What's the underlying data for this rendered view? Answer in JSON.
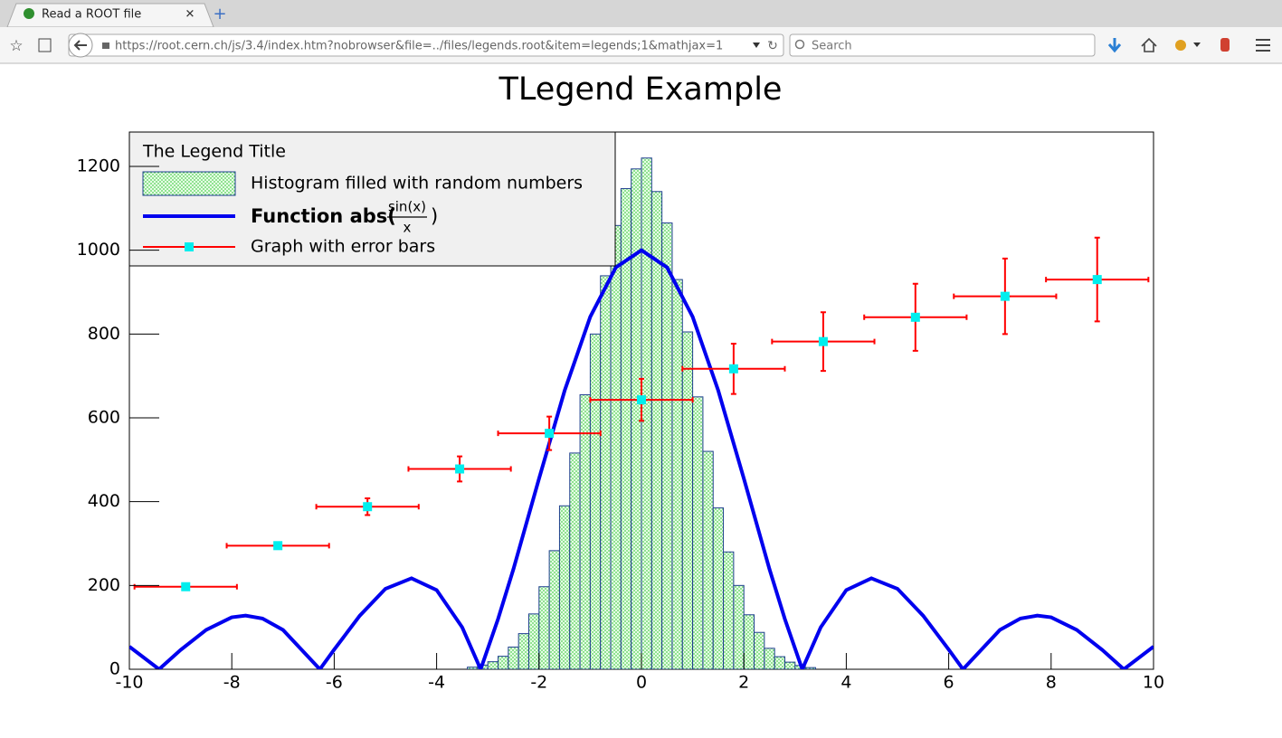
{
  "browser": {
    "tab_title": "Read a ROOT file",
    "url": "https://root.cern.ch/js/3.4/index.htm?nobrowser&file=../files/legends.root&item=legends;1&mathjax=1",
    "search_placeholder": "Search"
  },
  "chart_data": {
    "type": "combo",
    "title": "TLegend Example",
    "legend_title": "The Legend Title",
    "xlim": [
      -10,
      10
    ],
    "xticks": [
      -10,
      -8,
      -6,
      -4,
      -2,
      0,
      2,
      4,
      6,
      8,
      10
    ],
    "ylim": [
      0,
      1282
    ],
    "yticks": [
      0,
      200,
      400,
      600,
      800,
      1000,
      1200
    ],
    "series": [
      {
        "name": "Histogram filled with random numbers",
        "type": "histogram",
        "color": "#1f3f8f",
        "bins": [
          -3.4,
          -3.2,
          -3.0,
          -2.8,
          -2.6,
          -2.4,
          -2.2,
          -2.0,
          -1.8,
          -1.6,
          -1.4,
          -1.2,
          -1.0,
          -0.8,
          -0.6,
          -0.4,
          -0.2,
          0,
          0.2,
          0.4,
          0.6,
          0.8,
          1.0,
          1.2,
          1.4,
          1.6,
          1.8,
          2.0,
          2.2,
          2.4,
          2.6,
          2.8,
          3.0,
          3.2,
          3.4
        ],
        "values": [
          5,
          10,
          18,
          31,
          53,
          85,
          132,
          197,
          283,
          390,
          516,
          655,
          800,
          939,
          1059,
          1147,
          1194,
          1220,
          1140,
          1065,
          930,
          805,
          650,
          520,
          385,
          280,
          200,
          130,
          88,
          50,
          30,
          17,
          9,
          4
        ]
      },
      {
        "name": [
          "Function abs(",
          "sin(x)",
          "x",
          ")"
        ],
        "type": "line",
        "color": "#0000ee",
        "x": [
          -10,
          -9.42,
          -9,
          -8.5,
          -8,
          -7.73,
          -7.4,
          -7,
          -6.28,
          -6,
          -5.5,
          -5,
          -4.49,
          -4,
          -3.5,
          -3.14,
          -2.8,
          -2.5,
          -2,
          -1.5,
          -1,
          -0.5,
          0,
          0.5,
          1,
          1.5,
          2,
          2.5,
          2.8,
          3.14,
          3.5,
          4,
          4.49,
          5,
          5.5,
          6,
          6.28,
          7,
          7.4,
          7.73,
          8,
          8.5,
          9,
          9.42,
          10
        ],
        "values": [
          54,
          0,
          46,
          94,
          124,
          128,
          121,
          94,
          0,
          47,
          128,
          192,
          217,
          189,
          100,
          0,
          120,
          239,
          455,
          665,
          841,
          959,
          1000,
          959,
          841,
          665,
          455,
          239,
          120,
          0,
          100,
          189,
          217,
          192,
          128,
          47,
          0,
          94,
          121,
          128,
          124,
          94,
          46,
          0,
          54
        ]
      },
      {
        "name": "Graph with error bars",
        "type": "errorbar",
        "color": "#ff0000",
        "marker_color": "#00eeee",
        "x": [
          -8.9,
          -7.1,
          -5.35,
          -3.55,
          -1.8,
          0,
          1.8,
          3.55,
          5.35,
          7.1,
          8.9
        ],
        "values": [
          197,
          295,
          388,
          478,
          563,
          643,
          717,
          782,
          840,
          890,
          930
        ],
        "xerr": [
          1.0,
          1.0,
          1.0,
          1.0,
          1.0,
          1.0,
          1.0,
          1.0,
          1.0,
          1.0,
          1.0
        ],
        "yerr": [
          5,
          7,
          20,
          30,
          40,
          50,
          60,
          70,
          80,
          90,
          100
        ]
      }
    ]
  }
}
